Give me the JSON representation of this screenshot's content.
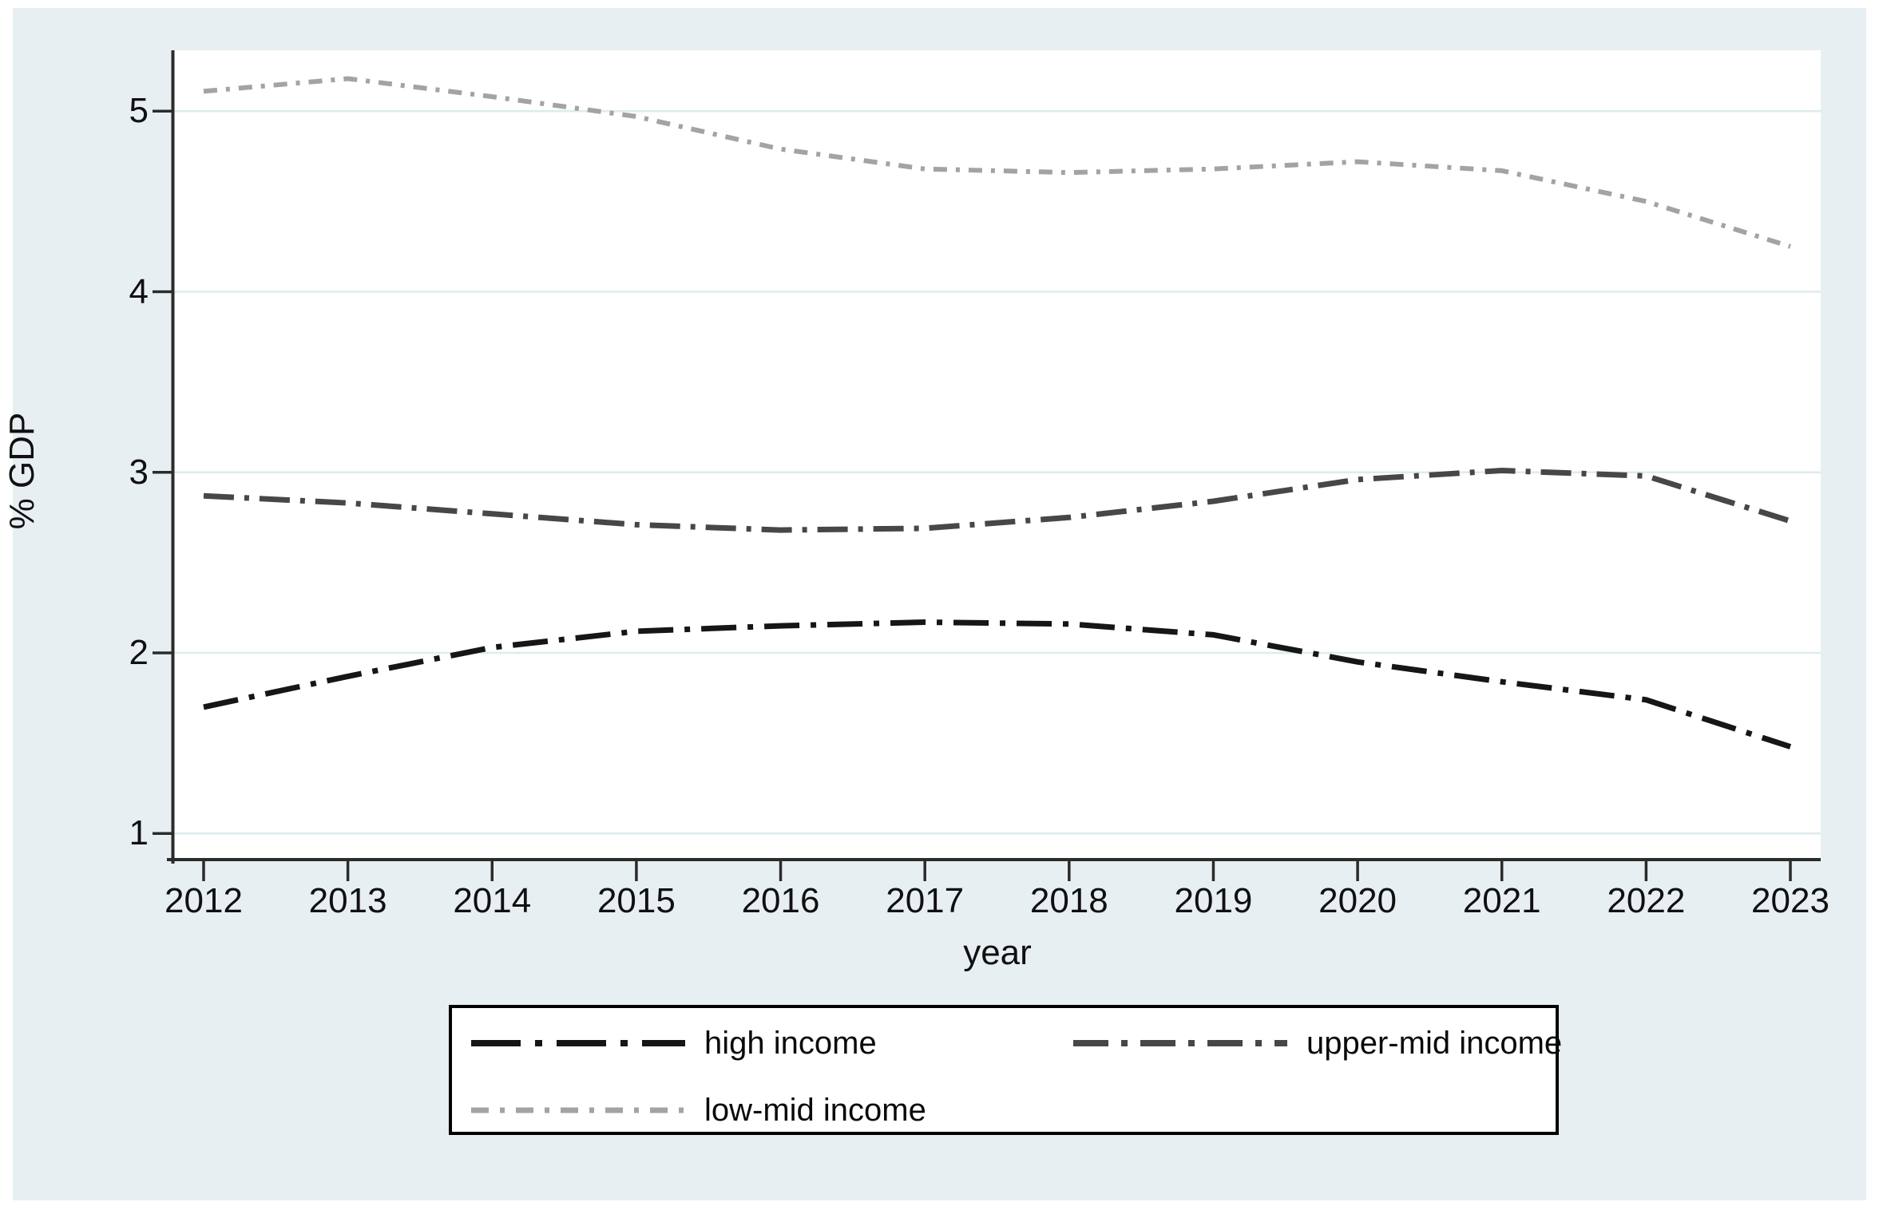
{
  "figure": {
    "region_background": "#e8eff2",
    "plot_background": "#ffffff",
    "gridline_color": "#dfebee",
    "axis_color": "#2b2b2b",
    "text_color": "#101010"
  },
  "chart_data": {
    "type": "line",
    "title": "",
    "xlabel": "year",
    "ylabel": "% GDP",
    "x": [
      2012,
      2013,
      2014,
      2015,
      2016,
      2017,
      2018,
      2019,
      2020,
      2021,
      2022,
      2023
    ],
    "yticks": [
      1,
      2,
      3,
      4,
      5
    ],
    "xlim": [
      2011.8,
      2023.2
    ],
    "ylim": [
      0.86,
      5.33
    ],
    "grid": "horizontal gridlines only",
    "legend_position": "bottom boxed, 2 rows",
    "series": [
      {
        "name": "high income",
        "color": "#161616",
        "dash_style": "long-dash-dot",
        "values": [
          1.7,
          1.87,
          2.03,
          2.12,
          2.15,
          2.17,
          2.16,
          2.1,
          1.95,
          1.84,
          1.74,
          1.48
        ]
      },
      {
        "name": "upper-mid income",
        "color": "#474747",
        "dash_style": "dash-dot",
        "values": [
          2.87,
          2.83,
          2.77,
          2.71,
          2.68,
          2.69,
          2.75,
          2.84,
          2.96,
          3.01,
          2.98,
          2.73
        ]
      },
      {
        "name": "low-mid income",
        "color": "#a3a3a3",
        "dash_style": "short-dash-dot",
        "values": [
          5.11,
          5.18,
          5.08,
          4.97,
          4.79,
          4.68,
          4.66,
          4.68,
          4.72,
          4.67,
          4.5,
          4.25
        ]
      }
    ]
  }
}
